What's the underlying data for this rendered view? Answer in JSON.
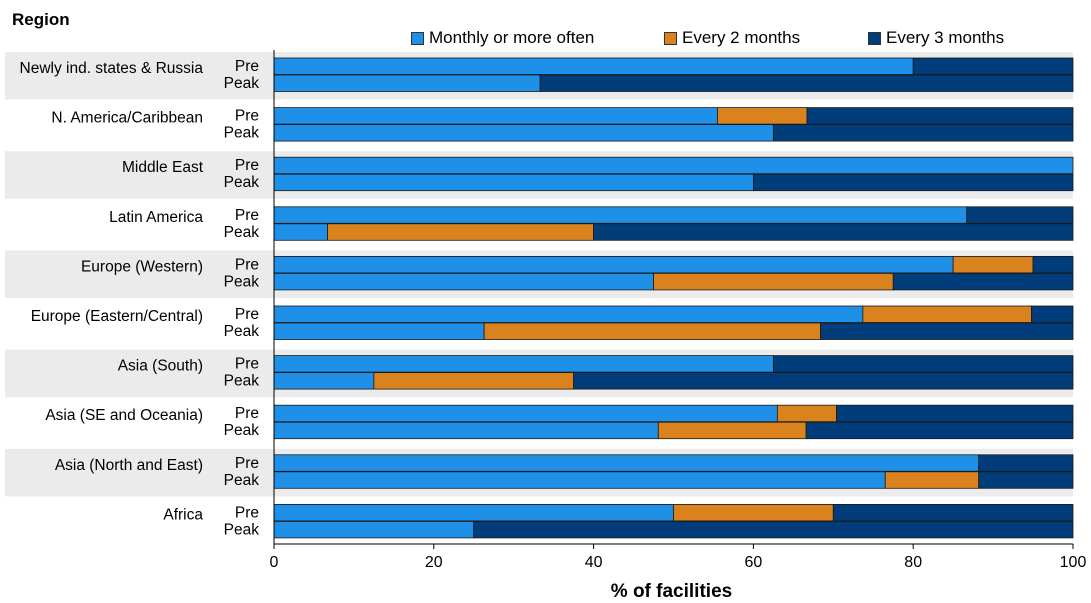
{
  "chart_data": {
    "type": "bar",
    "orientation": "horizontal",
    "stacked": true,
    "region_header": "Region",
    "xlabel": "% of facilities",
    "xlim": [
      0,
      100
    ],
    "xticks": [
      0,
      20,
      40,
      60,
      80,
      100
    ],
    "legend_position": "top",
    "colors": {
      "monthly": "#1e90e8",
      "every2": "#d9821e",
      "every3": "#003d7a"
    },
    "series_names": [
      "Monthly or more often",
      "Every 2 months",
      "Every 3 months"
    ],
    "groups": [
      {
        "region": "Newly ind. states & Russia",
        "bars": [
          {
            "label": "Pre",
            "values": [
              80,
              0,
              20
            ]
          },
          {
            "label": "Peak",
            "values": [
              33.3,
              0,
              66.7
            ]
          }
        ]
      },
      {
        "region": "N. America/Caribbean",
        "bars": [
          {
            "label": "Pre",
            "values": [
              55.5,
              11.2,
              33.3
            ]
          },
          {
            "label": "Peak",
            "values": [
              62.5,
              0,
              37.5
            ]
          }
        ]
      },
      {
        "region": "Middle East",
        "bars": [
          {
            "label": "Pre",
            "values": [
              100,
              0,
              0
            ]
          },
          {
            "label": "Peak",
            "values": [
              60,
              0,
              40
            ]
          }
        ]
      },
      {
        "region": "Latin America",
        "bars": [
          {
            "label": "Pre",
            "values": [
              86.7,
              0,
              13.3
            ]
          },
          {
            "label": "Peak",
            "values": [
              6.7,
              33.3,
              60
            ]
          }
        ]
      },
      {
        "region": "Europe (Western)",
        "bars": [
          {
            "label": "Pre",
            "values": [
              85,
              10,
              5
            ]
          },
          {
            "label": "Peak",
            "values": [
              47.5,
              30,
              22.5
            ]
          }
        ]
      },
      {
        "region": "Europe (Eastern/Central)",
        "bars": [
          {
            "label": "Pre",
            "values": [
              73.7,
              21.1,
              5.2
            ]
          },
          {
            "label": "Peak",
            "values": [
              26.3,
              42.1,
              31.6
            ]
          }
        ]
      },
      {
        "region": "Asia (South)",
        "bars": [
          {
            "label": "Pre",
            "values": [
              62.5,
              0,
              37.5
            ]
          },
          {
            "label": "Peak",
            "values": [
              12.5,
              25,
              62.5
            ]
          }
        ]
      },
      {
        "region": "Asia (SE and Oceania)",
        "bars": [
          {
            "label": "Pre",
            "values": [
              63,
              7.4,
              29.6
            ]
          },
          {
            "label": "Peak",
            "values": [
              48.1,
              18.5,
              33.4
            ]
          }
        ]
      },
      {
        "region": "Asia (North and East)",
        "bars": [
          {
            "label": "Pre",
            "values": [
              88.2,
              0,
              11.8
            ]
          },
          {
            "label": "Peak",
            "values": [
              76.5,
              11.7,
              11.8
            ]
          }
        ]
      },
      {
        "region": "Africa",
        "bars": [
          {
            "label": "Pre",
            "values": [
              50,
              20,
              30
            ]
          },
          {
            "label": "Peak",
            "values": [
              25,
              0,
              75
            ]
          }
        ]
      }
    ]
  }
}
